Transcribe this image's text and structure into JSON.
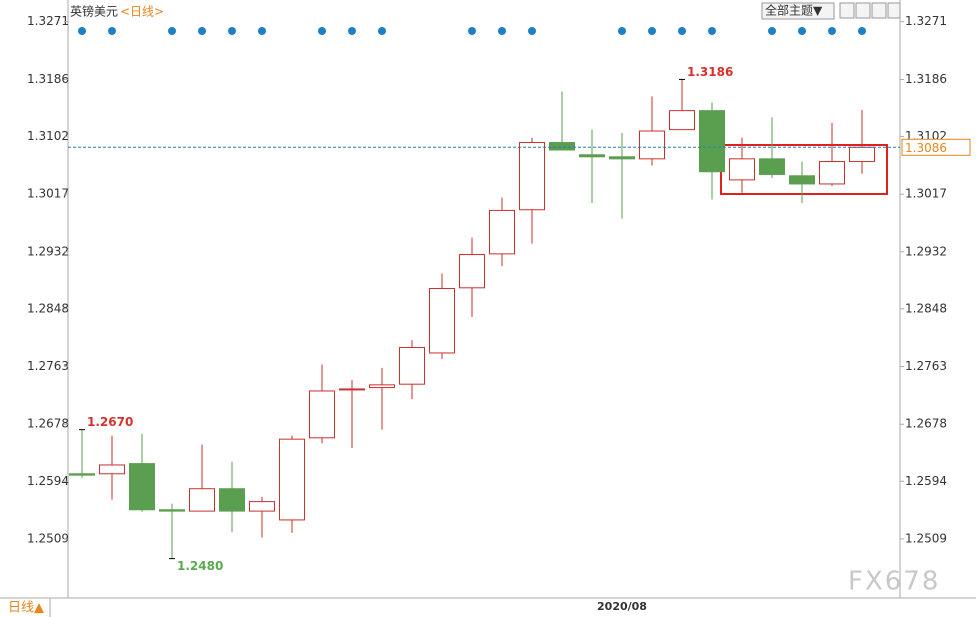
{
  "chart_data": {
    "type": "candlestick",
    "title": "英镑美元",
    "subtitle": "<日线>",
    "theme_button": "全部主题▼",
    "period_button": "日线▲",
    "watermark": "FX678",
    "up_color": "#c9302c",
    "down_color": "#5a9e4f",
    "ylim": [
      1.2422,
      1.3303
    ],
    "yticks": [
      1.3271,
      1.3186,
      1.3102,
      1.3017,
      1.2932,
      1.2848,
      1.2763,
      1.2678,
      1.2594,
      1.2509
    ],
    "categories": [
      null,
      null,
      null,
      null,
      null,
      null,
      null,
      null,
      null,
      null,
      null,
      null,
      null,
      null,
      null,
      null,
      null,
      null,
      "2020/08",
      null,
      null,
      null,
      null,
      null,
      null,
      null,
      null
    ],
    "candles": [
      {
        "open": 1.2605,
        "high": 1.267,
        "low": 1.2599,
        "close": 1.2603
      },
      {
        "open": 1.2605,
        "high": 1.2661,
        "low": 1.2567,
        "close": 1.2618
      },
      {
        "open": 1.262,
        "high": 1.2664,
        "low": 1.2549,
        "close": 1.2552
      },
      {
        "open": 1.2552,
        "high": 1.2561,
        "low": 1.248,
        "close": 1.255
      },
      {
        "open": 1.255,
        "high": 1.2648,
        "low": 1.255,
        "close": 1.2583
      },
      {
        "open": 1.2583,
        "high": 1.2623,
        "low": 1.2519,
        "close": 1.255
      },
      {
        "open": 1.255,
        "high": 1.2571,
        "low": 1.2511,
        "close": 1.2564
      },
      {
        "open": 1.2537,
        "high": 1.2661,
        "low": 1.2518,
        "close": 1.2656
      },
      {
        "open": 1.2658,
        "high": 1.2766,
        "low": 1.265,
        "close": 1.2727
      },
      {
        "open": 1.2729,
        "high": 1.2743,
        "low": 1.2643,
        "close": 1.273
      },
      {
        "open": 1.2732,
        "high": 1.2761,
        "low": 1.267,
        "close": 1.2736
      },
      {
        "open": 1.2737,
        "high": 1.2802,
        "low": 1.2715,
        "close": 1.2791
      },
      {
        "open": 1.2783,
        "high": 1.29,
        "low": 1.2774,
        "close": 1.2878
      },
      {
        "open": 1.2879,
        "high": 1.2953,
        "low": 1.2836,
        "close": 1.2928
      },
      {
        "open": 1.2929,
        "high": 1.3012,
        "low": 1.2911,
        "close": 1.2993
      },
      {
        "open": 1.2994,
        "high": 1.31,
        "low": 1.2944,
        "close": 1.3093
      },
      {
        "open": 1.3093,
        "high": 1.3168,
        "low": 1.3082,
        "close": 1.3082
      },
      {
        "open": 1.3075,
        "high": 1.3112,
        "low": 1.3004,
        "close": 1.3072
      },
      {
        "open": 1.3072,
        "high": 1.3107,
        "low": 1.2981,
        "close": 1.3069
      },
      {
        "open": 1.3069,
        "high": 1.3161,
        "low": 1.3059,
        "close": 1.311
      },
      {
        "open": 1.3112,
        "high": 1.3186,
        "low": 1.3112,
        "close": 1.314
      },
      {
        "open": 1.314,
        "high": 1.3152,
        "low": 1.3009,
        "close": 1.305
      },
      {
        "open": 1.3038,
        "high": 1.31,
        "low": 1.3019,
        "close": 1.3069
      },
      {
        "open": 1.3069,
        "high": 1.313,
        "low": 1.3041,
        "close": 1.3046
      },
      {
        "open": 1.3044,
        "high": 1.3065,
        "low": 1.3004,
        "close": 1.3032
      },
      {
        "open": 1.3032,
        "high": 1.3122,
        "low": 1.3029,
        "close": 1.3065
      },
      {
        "open": 1.3065,
        "high": 1.3141,
        "low": 1.3047,
        "close": 1.3086
      }
    ],
    "annotations": [
      {
        "value": 1.267,
        "label": "1.2670"
      },
      {
        "value": 1.3186,
        "label": "1.3186"
      },
      {
        "value": 1.248,
        "label": "1.2480"
      }
    ],
    "last_price": {
      "value": 1.3086,
      "label": "1.3086"
    }
  }
}
